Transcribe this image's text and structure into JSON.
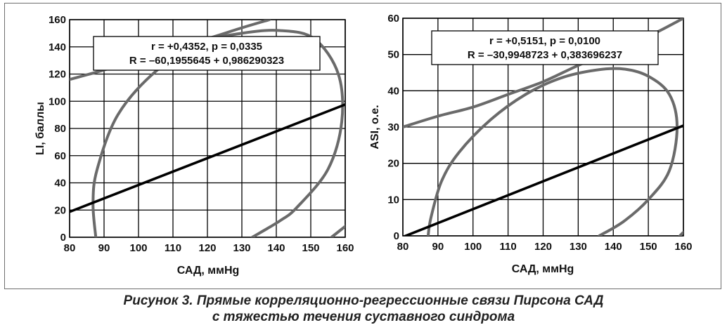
{
  "chart_data": [
    {
      "type": "scatter",
      "xlabel": "САД, ммHg",
      "ylabel": "LI, баллы",
      "xlim": [
        80,
        160
      ],
      "ylim": [
        0,
        160
      ],
      "xticks": [
        "80",
        "90",
        "100",
        "110",
        "120",
        "130",
        "140",
        "150",
        "160"
      ],
      "yticks": [
        "0",
        "20",
        "40",
        "60",
        "80",
        "100",
        "120",
        "140",
        "160"
      ],
      "grid": true,
      "stats_line1": "r = +0,4352, p = 0,0335",
      "stats_line2": "R = –60,1955645 + 0,986290323",
      "regression": {
        "intercept": -60.1955645,
        "slope": 0.986290323
      },
      "ellipse_outer": {
        "upper": [
          [
            80,
            116
          ],
          [
            90,
            123
          ],
          [
            100,
            131
          ],
          [
            110,
            139
          ],
          [
            120,
            146
          ],
          [
            130,
            154
          ],
          [
            138,
            160
          ]
        ],
        "lower": [
          [
            156,
            0
          ],
          [
            160,
            8
          ]
        ]
      },
      "ellipse_inner": [
        [
          87.6,
          0
        ],
        [
          86.8,
          25
        ],
        [
          88,
          50
        ],
        [
          94,
          90
        ],
        [
          105,
          122
        ],
        [
          118,
          143
        ],
        [
          130,
          150
        ],
        [
          141,
          152
        ],
        [
          151,
          146
        ],
        [
          158,
          120
        ],
        [
          159,
          85
        ],
        [
          155,
          50
        ],
        [
          146,
          22
        ],
        [
          141,
          12
        ],
        [
          133,
          0
        ]
      ]
    },
    {
      "type": "scatter",
      "xlabel": "САД, ммHg",
      "ylabel": "ASI, о.е.",
      "xlim": [
        80,
        160
      ],
      "ylim": [
        0,
        60
      ],
      "xticks": [
        "80",
        "90",
        "100",
        "110",
        "120",
        "130",
        "140",
        "150",
        "160"
      ],
      "yticks": [
        "0",
        "10",
        "20",
        "30",
        "40",
        "50",
        "60"
      ],
      "grid": true,
      "stats_line1": "r = +0,5151, p = 0,0100",
      "stats_line2": "R = –30,9948723 + 0,383696237",
      "regression": {
        "intercept": -30.9948723,
        "slope": 0.383696237
      },
      "ellipse_outer": {
        "upper": [
          [
            80,
            30
          ],
          [
            90,
            33
          ],
          [
            100,
            35.5
          ],
          [
            110,
            39
          ],
          [
            120,
            42.5
          ],
          [
            130,
            47
          ],
          [
            140,
            51
          ],
          [
            150,
            55
          ],
          [
            160,
            60
          ]
        ],
        "lower": [
          [
            159,
            0
          ],
          [
            160,
            1
          ]
        ]
      },
      "ellipse_inner": [
        [
          87.2,
          0
        ],
        [
          88,
          5
        ],
        [
          91,
          15
        ],
        [
          96,
          23
        ],
        [
          105,
          32
        ],
        [
          115,
          39
        ],
        [
          125,
          43.5
        ],
        [
          135,
          45.7
        ],
        [
          143,
          46
        ],
        [
          150,
          44
        ],
        [
          156,
          39
        ],
        [
          158.2,
          30
        ],
        [
          156,
          18
        ],
        [
          150,
          10
        ],
        [
          143,
          4
        ],
        [
          136,
          0
        ]
      ]
    }
  ],
  "caption_line1": "Рисунок 3. Прямые корреляционно-регрессионные связи Пирсона САД",
  "caption_line2": "с тяжестью течения суставного синдрома"
}
